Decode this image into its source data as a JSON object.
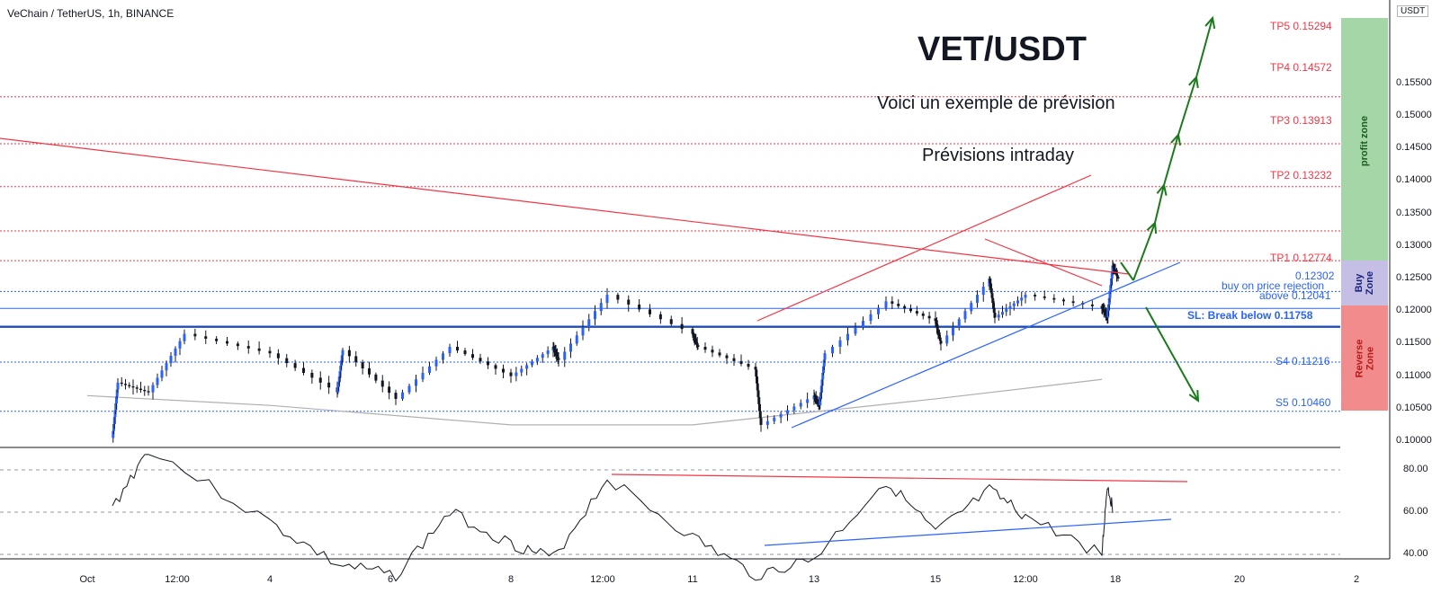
{
  "header": {
    "symbol_line": "VeChain / TetherUS, 1h, BINANCE",
    "currency_badge": "USDT"
  },
  "annotations": {
    "title": "VET/USDT",
    "subtitle1": "Voici un exemple de prévision",
    "subtitle2": "Prévisions intraday"
  },
  "levels": {
    "tp5": "TP5 0.15294",
    "tp4": "TP4 0.14572",
    "tp3": "TP3 0.13913",
    "tp2": "TP2 0.13232",
    "tp1": "TP1 0.12774",
    "buy_top": "0.12302",
    "buy_rejection": "buy on price rejection",
    "buy_above": "above 0.12041",
    "sl": "SL: Break below 0.11758",
    "s4": "S4 0.11216",
    "s5": "S5 0.10460"
  },
  "zones": {
    "profit": "profit zone",
    "buy_line1": "Buy",
    "buy_line2": "Zone",
    "reverse_line1": "Reverse",
    "reverse_line2": "Zone"
  },
  "colors": {
    "tp": "#f23645",
    "support": "#2962ff",
    "profit_zone": "#a5d6a7",
    "buy_zone": "#c5bfe6",
    "reverse_zone": "#f28b8b",
    "projection": "#1b7a1b"
  },
  "y_axis": {
    "ticks": [
      "0.15500",
      "0.15000",
      "0.14500",
      "0.14000",
      "0.13500",
      "0.13000",
      "0.12500",
      "0.12000",
      "0.11500",
      "0.11000",
      "0.10500",
      "0.10000"
    ]
  },
  "rsi_axis": {
    "ticks": [
      "80.00",
      "60.00",
      "40.00"
    ]
  },
  "x_axis": {
    "ticks": [
      "Oct",
      "12:00",
      "4",
      "6",
      "8",
      "12:00",
      "11",
      "13",
      "15",
      "12:00",
      "18",
      "20",
      "2"
    ]
  },
  "chart_data": {
    "type": "candlestick",
    "symbol": "VeChain / TetherUS",
    "timeframe": "1h",
    "exchange": "BINANCE",
    "ylim": [
      0.1,
      0.155
    ],
    "price_path": [
      {
        "x": "Oct 2",
        "y": 0.1005
      },
      {
        "x": "Oct 2",
        "y": 0.109
      },
      {
        "x": "Oct 3",
        "y": 0.1075
      },
      {
        "x": "Oct 3 12:00",
        "y": 0.1165
      },
      {
        "x": "Oct 4",
        "y": 0.1135
      },
      {
        "x": "Oct 5",
        "y": 0.1075
      },
      {
        "x": "Oct 5",
        "y": 0.114
      },
      {
        "x": "Oct 6",
        "y": 0.1065
      },
      {
        "x": "Oct 7",
        "y": 0.1145
      },
      {
        "x": "Oct 8",
        "y": 0.11
      },
      {
        "x": "Oct 9",
        "y": 0.1145
      },
      {
        "x": "Oct 9",
        "y": 0.1125
      },
      {
        "x": "Oct 10 12:00",
        "y": 0.1225
      },
      {
        "x": "Oct 11",
        "y": 0.1165
      },
      {
        "x": "Oct 11",
        "y": 0.1145
      },
      {
        "x": "Oct 12",
        "y": 0.111
      },
      {
        "x": "Oct 12",
        "y": 0.1025
      },
      {
        "x": "Oct 13",
        "y": 0.107
      },
      {
        "x": "Oct 13",
        "y": 0.1055
      },
      {
        "x": "Oct 13",
        "y": 0.1135
      },
      {
        "x": "Oct 14",
        "y": 0.1215
      },
      {
        "x": "Oct 15",
        "y": 0.1185
      },
      {
        "x": "Oct 15",
        "y": 0.115
      },
      {
        "x": "Oct 16",
        "y": 0.125
      },
      {
        "x": "Oct 16",
        "y": 0.119
      },
      {
        "x": "Oct 16 12:00",
        "y": 0.1225
      },
      {
        "x": "Oct 17",
        "y": 0.1205
      },
      {
        "x": "Oct 17",
        "y": 0.119
      },
      {
        "x": "Oct 17",
        "y": 0.127
      },
      {
        "x": "Oct 17",
        "y": 0.125
      }
    ],
    "ma_path": [
      {
        "x": "Oct",
        "y": 0.107
      },
      {
        "x": "Oct 4",
        "y": 0.1055
      },
      {
        "x": "Oct 8",
        "y": 0.1025
      },
      {
        "x": "Oct 11",
        "y": 0.1025
      },
      {
        "x": "Oct 15",
        "y": 0.1065
      },
      {
        "x": "Oct 17",
        "y": 0.1095
      }
    ],
    "horizontal_levels": [
      {
        "label": "TP5",
        "value": 0.15294
      },
      {
        "label": "TP4",
        "value": 0.14572
      },
      {
        "label": "TP3",
        "value": 0.13913
      },
      {
        "label": "TP2",
        "value": 0.13232
      },
      {
        "label": "TP1",
        "value": 0.12774
      },
      {
        "label": "Buy zone top",
        "value": 0.12302
      },
      {
        "label": "buy on price rejection above",
        "value": 0.12041
      },
      {
        "label": "SL",
        "value": 0.11758
      },
      {
        "label": "S4",
        "value": 0.11216
      },
      {
        "label": "S5",
        "value": 0.1046
      }
    ],
    "zones": [
      {
        "label": "profit zone",
        "from": 0.12302,
        "to": 0.15294
      },
      {
        "label": "Buy Zone",
        "from": 0.11758,
        "to": 0.12302
      },
      {
        "label": "Reverse Zone",
        "from": 0.1046,
        "to": 0.11758
      }
    ],
    "rsi_panel": {
      "ticks": [
        80,
        60,
        40
      ],
      "rsi_path": [
        {
          "x": "Oct 2",
          "y": 62
        },
        {
          "x": "Oct 3",
          "y": 90
        },
        {
          "x": "Oct 4",
          "y": 55
        },
        {
          "x": "Oct 5",
          "y": 35
        },
        {
          "x": "Oct 6",
          "y": 30
        },
        {
          "x": "Oct 7",
          "y": 60
        },
        {
          "x": "Oct 8",
          "y": 45
        },
        {
          "x": "Oct 9",
          "y": 38
        },
        {
          "x": "Oct 10 12:00",
          "y": 76
        },
        {
          "x": "Oct 11",
          "y": 48
        },
        {
          "x": "Oct 12",
          "y": 30
        },
        {
          "x": "Oct 13",
          "y": 38
        },
        {
          "x": "Oct 14",
          "y": 75
        },
        {
          "x": "Oct 15",
          "y": 50
        },
        {
          "x": "Oct 16",
          "y": 70
        },
        {
          "x": "Oct 16 12:00",
          "y": 58
        },
        {
          "x": "Oct 17",
          "y": 40
        },
        {
          "x": "Oct 17",
          "y": 73
        },
        {
          "x": "Oct 17",
          "y": 62
        }
      ]
    }
  }
}
